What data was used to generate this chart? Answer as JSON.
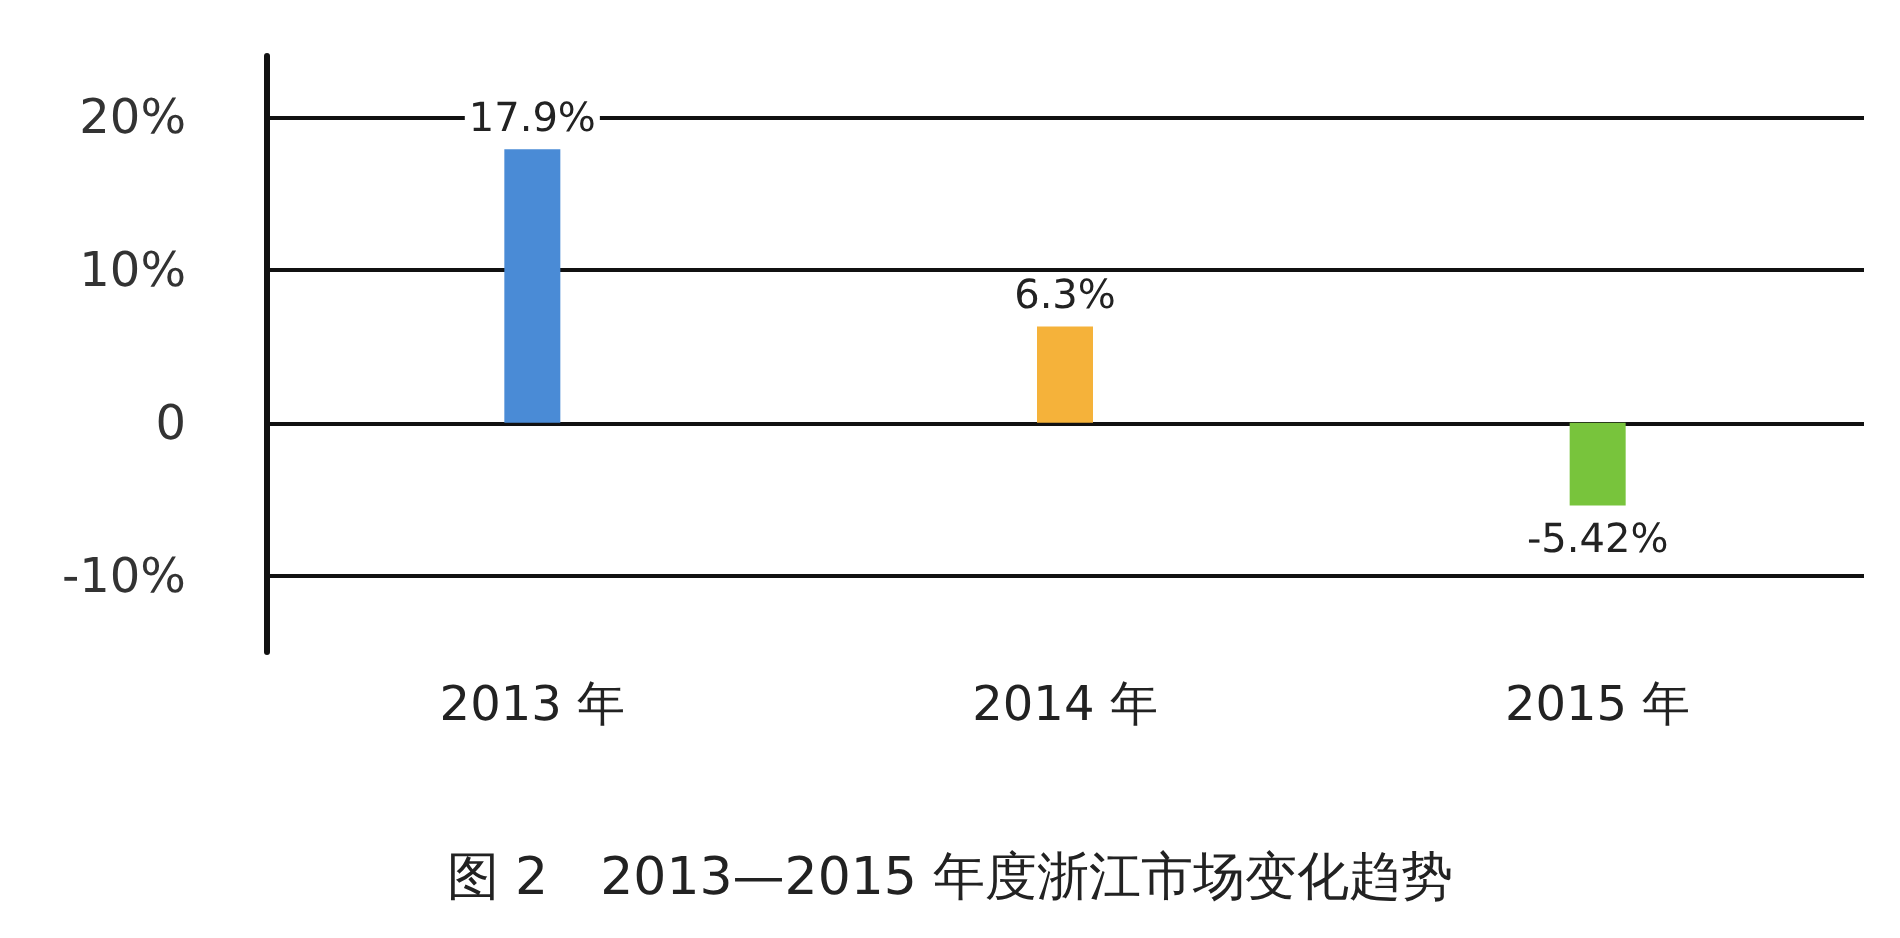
{
  "chart_data": {
    "type": "bar",
    "title": "图 2　2013—2015 年度浙江市场变化趋势",
    "categories": [
      "2013 年",
      "2014 年",
      "2015 年"
    ],
    "values": [
      17.9,
      6.3,
      -5.42
    ],
    "colors": [
      "#4a8bd6",
      "#f5b23a",
      "#78c43c"
    ],
    "value_labels": [
      "17.9%",
      "6.3%",
      "-5.42%"
    ],
    "ylim": [
      -15,
      24
    ],
    "yticks": [
      {
        "value": -10,
        "label": "-10%"
      },
      {
        "value": 0,
        "label": "0"
      },
      {
        "value": 10,
        "label": "10%"
      },
      {
        "value": 20,
        "label": "20%"
      }
    ],
    "grid": "y"
  }
}
